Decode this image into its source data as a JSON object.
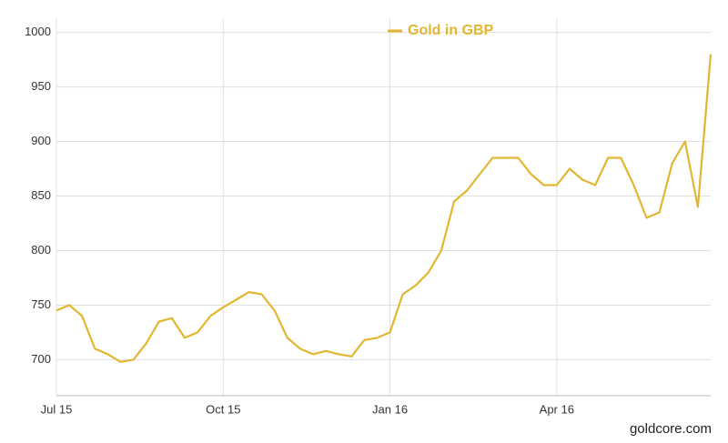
{
  "chart_data": {
    "type": "line",
    "categories": [
      "Jul 15",
      null,
      null,
      null,
      null,
      null,
      null,
      null,
      null,
      null,
      null,
      null,
      null,
      "Oct 15",
      null,
      null,
      null,
      null,
      null,
      null,
      null,
      null,
      null,
      null,
      null,
      null,
      "Jan 16",
      null,
      null,
      null,
      null,
      null,
      null,
      null,
      null,
      null,
      null,
      null,
      null,
      "Apr 16",
      null,
      null,
      null,
      null,
      null,
      null,
      null,
      null,
      null,
      null,
      null,
      null
    ],
    "series": [
      {
        "name": "Gold in GBP",
        "color": "#e3b630",
        "values": [
          745,
          750,
          740,
          710,
          705,
          698,
          700,
          715,
          735,
          738,
          720,
          725,
          740,
          748,
          755,
          762,
          760,
          745,
          720,
          710,
          705,
          708,
          705,
          703,
          718,
          720,
          725,
          760,
          768,
          780,
          800,
          845,
          855,
          870,
          885,
          885,
          885,
          870,
          860,
          860,
          875,
          865,
          860,
          885,
          885,
          860,
          830,
          835,
          880,
          900,
          840,
          980
        ]
      }
    ],
    "ylim": [
      667,
      1013
    ],
    "yticks": [
      700,
      750,
      800,
      850,
      900,
      950,
      1000
    ],
    "grid": true,
    "legend": "top",
    "source": "goldcore.com"
  }
}
